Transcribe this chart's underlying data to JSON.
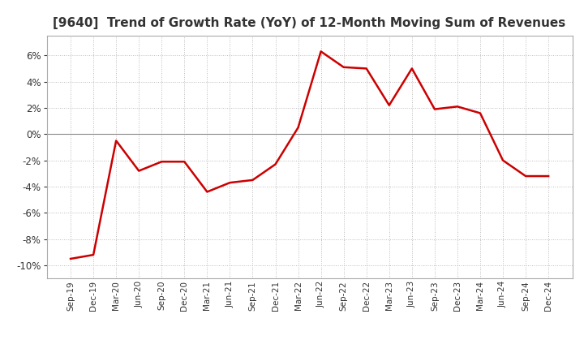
{
  "title": "[9640]  Trend of Growth Rate (YoY) of 12-Month Moving Sum of Revenues",
  "title_fontsize": 11,
  "line_color": "#cc0000",
  "line_width": 1.8,
  "background_color": "#ffffff",
  "plot_bg_color": "#ffffff",
  "grid_color": "#bbbbbb",
  "ylim": [
    -0.11,
    0.075
  ],
  "yticks": [
    -0.1,
    -0.08,
    -0.06,
    -0.04,
    -0.02,
    0.0,
    0.02,
    0.04,
    0.06
  ],
  "x_labels": [
    "Sep-19",
    "Dec-19",
    "Mar-20",
    "Jun-20",
    "Sep-20",
    "Dec-20",
    "Mar-21",
    "Jun-21",
    "Sep-21",
    "Dec-21",
    "Mar-22",
    "Jun-22",
    "Sep-22",
    "Dec-22",
    "Mar-23",
    "Jun-23",
    "Sep-23",
    "Dec-23",
    "Mar-24",
    "Jun-24",
    "Sep-24",
    "Dec-24"
  ],
  "y_values": [
    -0.095,
    -0.092,
    -0.005,
    -0.028,
    -0.021,
    -0.021,
    -0.044,
    -0.037,
    -0.035,
    -0.023,
    0.005,
    0.063,
    0.051,
    0.05,
    0.022,
    0.05,
    0.019,
    0.021,
    0.016,
    -0.02,
    -0.032,
    -0.032
  ]
}
